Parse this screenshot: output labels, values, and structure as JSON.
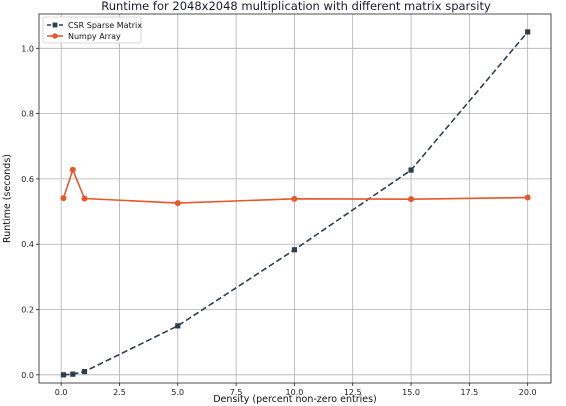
{
  "chart_data": {
    "type": "line",
    "title": "Runtime for 2048x2048 multiplication with different matrix sparsity",
    "xlabel": "Density (percent non-zero entries)",
    "ylabel": "Runtime (seconds)",
    "xlim": [
      -0.95,
      21.0
    ],
    "ylim": [
      -0.025,
      1.105
    ],
    "xticks": [
      0.0,
      2.5,
      5.0,
      7.5,
      10.0,
      12.5,
      15.0,
      17.5,
      20.0
    ],
    "xtick_labels": [
      "0.0",
      "2.5",
      "5.0",
      "7.5",
      "10.0",
      "12.5",
      "15.0",
      "17.5",
      "20.0"
    ],
    "yticks": [
      0.0,
      0.2,
      0.4,
      0.6,
      0.8,
      1.0
    ],
    "ytick_labels": [
      "0.0",
      "0.2",
      "0.4",
      "0.6",
      "0.8",
      "1.0"
    ],
    "grid": true,
    "legend_position": "top-left",
    "series": [
      {
        "name": "CSR Sparse Matrix",
        "color": "#2c3e50",
        "line_style": "dashed",
        "marker": "square",
        "x": [
          0.1,
          0.5,
          1.0,
          5.0,
          10.0,
          15.0,
          20.0
        ],
        "y": [
          0.0,
          0.002,
          0.01,
          0.15,
          0.383,
          0.627,
          1.05
        ]
      },
      {
        "name": "Numpy Array",
        "color": "#e8572a",
        "line_style": "solid",
        "marker": "circle",
        "x": [
          0.1,
          0.5,
          1.0,
          5.0,
          10.0,
          15.0,
          20.0
        ],
        "y": [
          0.541,
          0.628,
          0.54,
          0.526,
          0.539,
          0.538,
          0.543
        ]
      }
    ]
  }
}
